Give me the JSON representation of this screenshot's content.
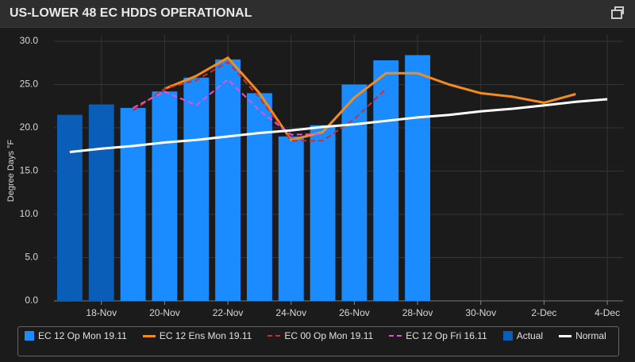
{
  "title": "US-LOWER 48 EC HDDS OPERATIONAL",
  "chart_data": {
    "type": "bar",
    "y_label": "Degree Days °F",
    "categories": [
      null,
      "18-Nov",
      null,
      "20-Nov",
      null,
      "22-Nov",
      null,
      "24-Nov",
      null,
      "26-Nov",
      null,
      "28-Nov",
      null,
      "30-Nov",
      null,
      "2-Dec",
      null,
      "4-Dec"
    ],
    "ylim": [
      0,
      30
    ],
    "yticks": [
      {
        "value": 0,
        "label": "0.0"
      },
      {
        "value": 5,
        "label": "5.0"
      },
      {
        "value": 10,
        "label": "10.0"
      },
      {
        "value": 15,
        "label": "15.0"
      },
      {
        "value": 20,
        "label": "20.0"
      },
      {
        "value": 25,
        "label": "25.0"
      },
      {
        "value": 30,
        "label": "30.0"
      }
    ],
    "grid": true,
    "series": [
      {
        "name": "EC 12 Op Mon 19.11",
        "type": "bar",
        "color": "#1a8cff",
        "values": [
          null,
          null,
          22.3,
          24.2,
          25.8,
          27.9,
          24.0,
          19.0,
          20.3,
          25.0,
          27.8,
          28.4,
          null,
          null,
          null,
          null,
          null,
          null
        ]
      },
      {
        "name": "EC 12 Ens Mon 19.11",
        "type": "line",
        "color": "#f28c1c",
        "dash": false,
        "values": [
          null,
          null,
          null,
          24.5,
          26.0,
          28.1,
          24.0,
          18.6,
          19.5,
          23.5,
          26.3,
          26.3,
          25.0,
          24.0,
          23.6,
          22.9,
          23.9,
          null
        ]
      },
      {
        "name": "EC 00 Op Mon 19.11",
        "type": "line",
        "color": "#d42a2a",
        "dash": true,
        "values": [
          null,
          null,
          22.0,
          24.5,
          25.5,
          27.6,
          23.5,
          18.5,
          18.5,
          21.0,
          24.5,
          null,
          null,
          null,
          null,
          null,
          null,
          null
        ]
      },
      {
        "name": "EC 12 Op Fri 16.11",
        "type": "line",
        "color": "#e84fd8",
        "dash": true,
        "values": [
          null,
          null,
          22.3,
          24.2,
          22.6,
          25.6,
          22.0,
          19.2,
          19.3,
          null,
          null,
          null,
          null,
          null,
          null,
          null,
          null,
          null
        ]
      },
      {
        "name": "Actual",
        "type": "bar",
        "color": "#0a5eb8",
        "values": [
          21.5,
          22.7,
          null,
          null,
          null,
          null,
          null,
          null,
          null,
          null,
          null,
          null,
          null,
          null,
          null,
          null,
          null,
          null
        ]
      },
      {
        "name": "Normal",
        "type": "line",
        "color": "#ffffff",
        "dash": false,
        "values": [
          17.2,
          17.6,
          17.9,
          18.3,
          18.6,
          19.0,
          19.4,
          19.7,
          20.1,
          20.4,
          20.8,
          21.2,
          21.5,
          21.9,
          22.2,
          22.6,
          23.0,
          23.3
        ]
      }
    ]
  }
}
